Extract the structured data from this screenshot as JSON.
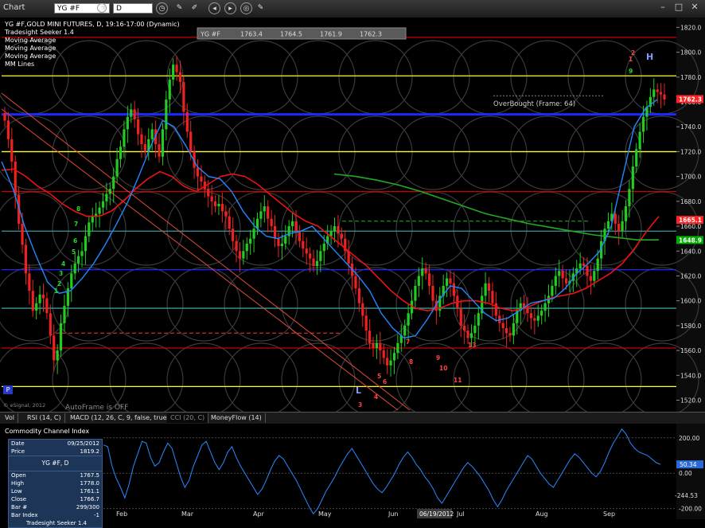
{
  "window": {
    "app": "Chart",
    "symbol_field": "YG #F",
    "interval_field": "D"
  },
  "chart_data": {
    "type": "candlestick",
    "title": "YG #F,GOLD MINI FUTURES, D, 19:16-17:00 (Dynamic)",
    "studies": [
      "Tradesight Seeker 1.4",
      "Moving Average",
      "Moving Average",
      "Moving Average",
      "MM Lines"
    ],
    "quote_box": [
      "YG #F",
      "1763.4",
      "1764.5",
      "1761.9",
      "1762.3"
    ],
    "months": [
      "Feb",
      "Mar",
      "Apr",
      "May",
      "Jun",
      "Jul",
      "Aug",
      "Sep"
    ],
    "highlighted_date": "06/19/2012",
    "y_ticks": [
      1520.0,
      1540.0,
      1560.0,
      1580.0,
      1600.0,
      1620.0,
      1640.0,
      1660.0,
      1680.0,
      1700.0,
      1720.0,
      1740.0,
      1760.0,
      1780.0,
      1800.0,
      1820.0
    ],
    "ylim": [
      1512,
      1826
    ],
    "price_labels": [
      {
        "value": 1762.3,
        "color": "#ff2222",
        "text": "1762.3"
      },
      {
        "value": 1665.1,
        "color": "#ff2222",
        "text": "1665.1"
      },
      {
        "value": 1648.9,
        "color": "#00aa00",
        "text": "1648.9"
      }
    ],
    "horizontal_lines": [
      {
        "value": 1812,
        "color": "#cc0000"
      },
      {
        "value": 1781,
        "color": "#ffff33"
      },
      {
        "value": 1750,
        "color": "#1a2aff",
        "thick": true
      },
      {
        "value": 1720,
        "color": "#ffff33"
      },
      {
        "value": 1688,
        "color": "#cc0000"
      },
      {
        "value": 1656,
        "color": "#3a9a9a"
      },
      {
        "value": 1625,
        "color": "#1a2aff"
      },
      {
        "value": 1594,
        "color": "#3a9a9a"
      },
      {
        "value": 1562,
        "color": "#cc0000"
      },
      {
        "value": 1531,
        "color": "#ffff33"
      }
    ],
    "annotations": [
      "OverBought (Frame: 64)",
      "AutoFrame is OFF",
      "© eSignal, 2012"
    ],
    "seeker_labels": [
      "1",
      "2",
      "H",
      "9",
      "8",
      "7",
      "6",
      "5",
      "4",
      "3",
      "2",
      "1",
      "3",
      "4",
      "5",
      "6",
      "7",
      "8",
      "9",
      "10",
      "11",
      "13",
      "L"
    ],
    "closes": [
      1745,
      1730,
      1712,
      1685,
      1662,
      1645,
      1622,
      1608,
      1592,
      1598,
      1605,
      1602,
      1590,
      1572,
      1552,
      1560,
      1582,
      1596,
      1610,
      1622,
      1630,
      1636,
      1640,
      1652,
      1663,
      1668,
      1670,
      1675,
      1680,
      1686,
      1690,
      1700,
      1714,
      1724,
      1738,
      1748,
      1754,
      1746,
      1734,
      1726,
      1720,
      1730,
      1738,
      1726,
      1716,
      1738,
      1762,
      1778,
      1790,
      1784,
      1776,
      1752,
      1736,
      1720,
      1707,
      1700,
      1696,
      1690,
      1684,
      1680,
      1676,
      1678,
      1672,
      1668,
      1658,
      1648,
      1640,
      1634,
      1640,
      1646,
      1650,
      1658,
      1666,
      1672,
      1676,
      1666,
      1660,
      1650,
      1644,
      1646,
      1652,
      1660,
      1664,
      1656,
      1648,
      1642,
      1638,
      1634,
      1628,
      1632,
      1640,
      1646,
      1652,
      1656,
      1660,
      1654,
      1650,
      1640,
      1630,
      1620,
      1610,
      1598,
      1588,
      1576,
      1566,
      1562,
      1566,
      1560,
      1554,
      1548,
      1552,
      1558,
      1566,
      1572,
      1580,
      1590,
      1600,
      1612,
      1620,
      1626,
      1622,
      1612,
      1600,
      1592,
      1604,
      1612,
      1618,
      1614,
      1604,
      1594,
      1580,
      1576,
      1570,
      1574,
      1580,
      1590,
      1604,
      1614,
      1608,
      1598,
      1588,
      1582,
      1578,
      1574,
      1572,
      1582,
      1592,
      1598,
      1594,
      1590,
      1586,
      1584,
      1588,
      1592,
      1598,
      1604,
      1612,
      1620,
      1624,
      1618,
      1614,
      1616,
      1622,
      1626,
      1630,
      1628,
      1620,
      1616,
      1624,
      1634,
      1648,
      1658,
      1664,
      1670,
      1662,
      1656,
      1664,
      1676,
      1690,
      1708,
      1722,
      1736,
      1748,
      1756,
      1764,
      1770,
      1768,
      1766,
      1762
    ],
    "ma_blue_y": [
      1712,
      1690,
      1660,
      1636,
      1615,
      1606,
      1608,
      1618,
      1630,
      1645,
      1662,
      1680,
      1702,
      1725,
      1745,
      1740,
      1725,
      1708,
      1700,
      1698,
      1688,
      1672,
      1660,
      1652,
      1650,
      1654,
      1656,
      1660,
      1650,
      1640,
      1630,
      1620,
      1608,
      1590,
      1578,
      1570,
      1572,
      1585,
      1600,
      1612,
      1610,
      1600,
      1590,
      1584,
      1586,
      1592,
      1598,
      1600,
      1602,
      1610,
      1622,
      1630,
      1640,
      1660,
      1700,
      1740,
      1755,
      1762
    ],
    "ma_red_y": [
      1705,
      1706,
      1700,
      1692,
      1686,
      1678,
      1672,
      1668,
      1668,
      1672,
      1680,
      1690,
      1698,
      1704,
      1700,
      1692,
      1688,
      1694,
      1700,
      1702,
      1700,
      1694,
      1686,
      1678,
      1670,
      1664,
      1660,
      1652,
      1644,
      1636,
      1628,
      1618,
      1608,
      1600,
      1594,
      1592,
      1594,
      1598,
      1600,
      1600,
      1598,
      1594,
      1592,
      1594,
      1598,
      1602,
      1604,
      1606,
      1610,
      1616,
      1622,
      1630,
      1642,
      1656,
      1668
    ],
    "ma_green_y": [
      1702,
      1700,
      1697,
      1693,
      1688,
      1682,
      1676,
      1670,
      1666,
      1662,
      1659,
      1656,
      1653,
      1651,
      1649,
      1649
    ]
  },
  "indicator_tabs": [
    "Vol",
    "RSI (14, C)",
    "MACD (12, 26, C, 9, false, true)",
    "CCI (20, C)",
    "MoneyFlow (14)"
  ],
  "indicator": {
    "title": "Commodity Channel Index",
    "y_ticks": [
      "200.00",
      "0.00",
      "-200.00"
    ],
    "last_label": "50.34",
    "low_label": "-244.53",
    "ylim": [
      -260,
      280
    ],
    "values": [
      160,
      150,
      40,
      -30,
      -80,
      -140,
      -60,
      40,
      110,
      180,
      170,
      90,
      40,
      60,
      120,
      170,
      140,
      60,
      -20,
      -80,
      -40,
      40,
      100,
      160,
      180,
      120,
      60,
      20,
      60,
      120,
      150,
      90,
      40,
      0,
      -40,
      -80,
      -120,
      -90,
      -40,
      20,
      70,
      100,
      80,
      40,
      0,
      -40,
      -90,
      -140,
      -190,
      -230,
      -200,
      -150,
      -100,
      -60,
      -20,
      30,
      70,
      110,
      140,
      100,
      60,
      20,
      -20,
      -60,
      -90,
      -110,
      -80,
      -40,
      0,
      50,
      90,
      120,
      90,
      50,
      20,
      -20,
      -50,
      -90,
      -140,
      -170,
      -130,
      -90,
      -50,
      -10,
      30,
      60,
      40,
      10,
      -20,
      -60,
      -100,
      -150,
      -190,
      -150,
      -100,
      -60,
      -20,
      20,
      60,
      100,
      80,
      40,
      0,
      -30,
      -60,
      -80,
      -40,
      0,
      40,
      80,
      110,
      90,
      60,
      30,
      0,
      -20,
      10,
      60,
      120,
      170,
      210,
      250,
      220,
      170,
      140,
      120,
      110,
      100,
      80,
      60,
      50
    ]
  },
  "data_panel": {
    "rows": [
      [
        "Date",
        "09/25/2012"
      ],
      [
        "Price",
        "1819.2"
      ]
    ],
    "header": "YG #F, D",
    "ohlc": [
      [
        "Open",
        "1767.5"
      ],
      [
        "High",
        "1778.0"
      ],
      [
        "Low",
        "1761.1"
      ],
      [
        "Close",
        "1766.7"
      ],
      [
        "Bar #",
        "299/300"
      ],
      [
        "Bar Index",
        "-1"
      ]
    ],
    "footer": "Tradesight Seeker 1.4"
  }
}
